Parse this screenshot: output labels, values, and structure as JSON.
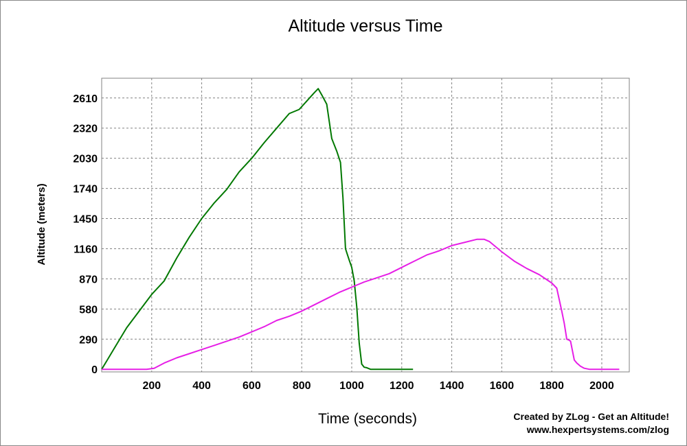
{
  "chart_data": {
    "type": "line",
    "title": "Altitude versus Time",
    "xlabel": "Time (seconds)",
    "ylabel": "Altitude (meters)",
    "xlim": [
      0,
      2110
    ],
    "ylim": [
      -25,
      2800
    ],
    "x_ticks": [
      200,
      400,
      600,
      800,
      1000,
      1200,
      1400,
      1600,
      1800,
      2000
    ],
    "y_ticks": [
      0,
      290,
      580,
      870,
      1160,
      1450,
      1740,
      2030,
      2320,
      2610
    ],
    "grid": true,
    "series": [
      {
        "color": "#007800",
        "x": [
          0,
          20,
          50,
          100,
          150,
          200,
          250,
          300,
          350,
          400,
          450,
          500,
          550,
          600,
          650,
          700,
          750,
          790,
          820,
          850,
          866,
          880,
          900,
          920,
          940,
          955,
          965,
          975,
          990,
          1000,
          1010,
          1020,
          1030,
          1040,
          1050,
          1060,
          1075,
          1090,
          1120,
          1170,
          1210,
          1245
        ],
        "y": [
          0,
          80,
          200,
          400,
          560,
          720,
          850,
          1070,
          1270,
          1450,
          1600,
          1730,
          1900,
          2030,
          2180,
          2320,
          2460,
          2500,
          2580,
          2660,
          2700,
          2640,
          2550,
          2220,
          2100,
          1990,
          1650,
          1160,
          1050,
          980,
          850,
          600,
          250,
          50,
          20,
          15,
          0,
          0,
          0,
          0,
          0,
          0
        ]
      },
      {
        "color": "#e61ee6",
        "x": [
          0,
          100,
          180,
          210,
          250,
          300,
          350,
          400,
          450,
          500,
          550,
          600,
          650,
          700,
          750,
          800,
          850,
          900,
          950,
          1000,
          1050,
          1100,
          1150,
          1200,
          1250,
          1300,
          1350,
          1400,
          1450,
          1500,
          1530,
          1550,
          1600,
          1650,
          1700,
          1750,
          1800,
          1820,
          1840,
          1850,
          1860,
          1870,
          1875,
          1890,
          1900,
          1915,
          1930,
          1950,
          2000,
          2050,
          2070
        ],
        "y": [
          0,
          0,
          0,
          10,
          60,
          110,
          150,
          190,
          230,
          270,
          310,
          360,
          410,
          470,
          510,
          560,
          620,
          680,
          740,
          790,
          840,
          880,
          920,
          980,
          1040,
          1100,
          1140,
          1190,
          1220,
          1250,
          1250,
          1230,
          1130,
          1040,
          970,
          910,
          830,
          780,
          560,
          440,
          290,
          280,
          270,
          90,
          60,
          30,
          10,
          0,
          0,
          0,
          0
        ]
      }
    ]
  },
  "credit": {
    "line1": "Created by ZLog - Get an Altitude!",
    "line2": "www.hexpertsystems.com/zlog"
  }
}
